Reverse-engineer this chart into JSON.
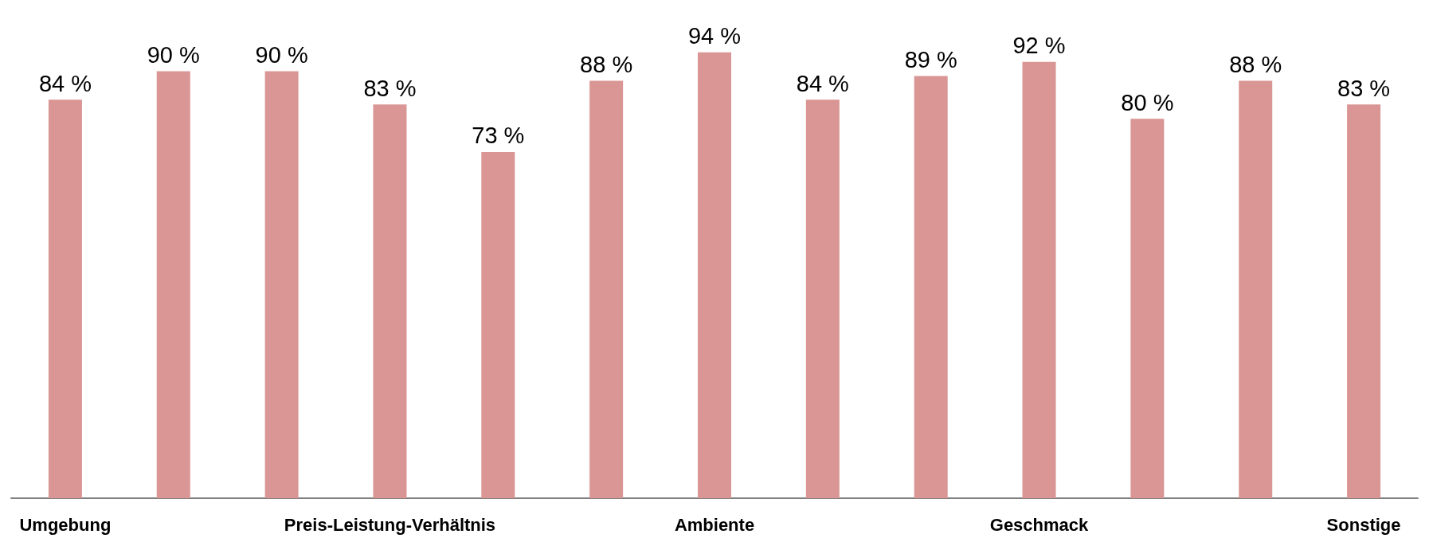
{
  "chart_data": {
    "type": "bar",
    "categories": [
      "Umgebung",
      null,
      null,
      "Preis-Leistung-Verhältnis",
      null,
      null,
      "Ambiente",
      null,
      null,
      "Geschmack",
      null,
      null,
      "Sonstige"
    ],
    "values": [
      84,
      90,
      90,
      83,
      73,
      88,
      94,
      84,
      89,
      92,
      80,
      88,
      83
    ],
    "value_labels": [
      "84 %",
      "90 %",
      "90 %",
      "83 %",
      "73 %",
      "88 %",
      "94 %",
      "84 %",
      "89 %",
      "92 %",
      "80 %",
      "88 %",
      "83 %"
    ],
    "color": "#d99694"
  }
}
